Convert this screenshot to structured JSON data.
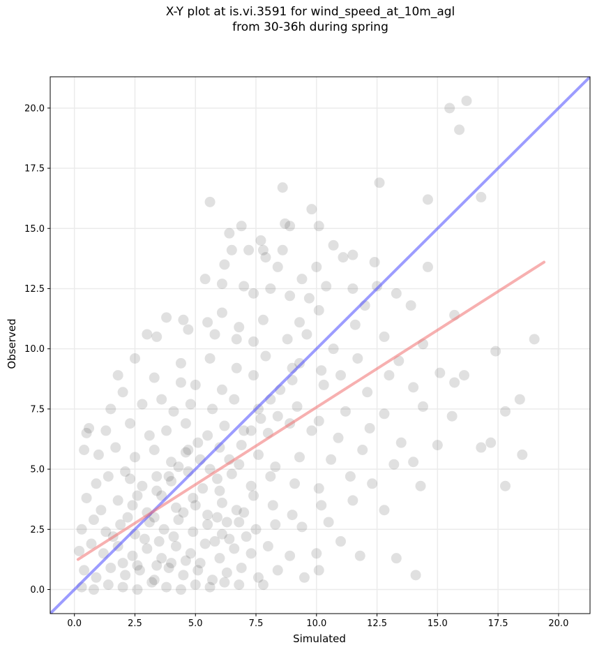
{
  "chart_data": {
    "type": "scatter",
    "title_lines": [
      "X-Y plot at is.vi.3591 for wind_speed_at_10m_agl",
      "from 30-36h during spring"
    ],
    "xlabel": "Simulated",
    "ylabel": "Observed",
    "xlim": [
      -1.0,
      21.3
    ],
    "ylim": [
      -1.0,
      21.3
    ],
    "xticks": [
      "0.0",
      "2.5",
      "5.0",
      "7.5",
      "10.0",
      "12.5",
      "15.0",
      "17.5",
      "20.0"
    ],
    "yticks": [
      "0.0",
      "2.5",
      "5.0",
      "7.5",
      "10.0",
      "12.5",
      "15.0",
      "17.5",
      "20.0"
    ],
    "grid": true,
    "series": [
      {
        "kind": "points",
        "color": "#000000",
        "points": [
          [
            16.2,
            20.3
          ],
          [
            15.5,
            20.0
          ],
          [
            15.9,
            19.1
          ],
          [
            8.6,
            16.7
          ],
          [
            12.6,
            16.9
          ],
          [
            5.6,
            16.1
          ],
          [
            14.6,
            16.2
          ],
          [
            16.8,
            16.3
          ],
          [
            9.8,
            15.8
          ],
          [
            10.1,
            15.1
          ],
          [
            8.7,
            15.2
          ],
          [
            8.9,
            15.1
          ],
          [
            6.9,
            15.1
          ],
          [
            6.4,
            14.8
          ],
          [
            7.7,
            14.5
          ],
          [
            7.8,
            14.1
          ],
          [
            7.2,
            14.1
          ],
          [
            6.5,
            14.1
          ],
          [
            8.6,
            14.1
          ],
          [
            10.7,
            14.3
          ],
          [
            11.5,
            13.9
          ],
          [
            14.6,
            13.4
          ],
          [
            11.1,
            13.8
          ],
          [
            12.4,
            13.6
          ],
          [
            8.4,
            13.4
          ],
          [
            10.0,
            13.4
          ],
          [
            6.2,
            13.5
          ],
          [
            7.9,
            13.8
          ],
          [
            5.4,
            12.9
          ],
          [
            6.1,
            12.7
          ],
          [
            7.0,
            12.6
          ],
          [
            8.1,
            12.5
          ],
          [
            9.4,
            12.9
          ],
          [
            10.4,
            12.6
          ],
          [
            12.5,
            12.6
          ],
          [
            13.3,
            12.3
          ],
          [
            11.5,
            12.5
          ],
          [
            7.4,
            12.3
          ],
          [
            8.9,
            12.2
          ],
          [
            9.7,
            12.1
          ],
          [
            3.8,
            11.3
          ],
          [
            4.5,
            11.2
          ],
          [
            5.5,
            11.1
          ],
          [
            6.1,
            11.5
          ],
          [
            6.8,
            10.9
          ],
          [
            7.8,
            11.2
          ],
          [
            9.3,
            11.1
          ],
          [
            10.1,
            11.6
          ],
          [
            11.6,
            11.0
          ],
          [
            12.0,
            11.8
          ],
          [
            13.9,
            11.8
          ],
          [
            15.7,
            11.4
          ],
          [
            3.4,
            10.5
          ],
          [
            3.0,
            10.6
          ],
          [
            4.7,
            10.8
          ],
          [
            5.8,
            10.6
          ],
          [
            6.7,
            10.4
          ],
          [
            7.4,
            10.3
          ],
          [
            8.8,
            10.4
          ],
          [
            9.6,
            10.6
          ],
          [
            10.7,
            10.0
          ],
          [
            12.8,
            10.5
          ],
          [
            14.4,
            10.2
          ],
          [
            19.0,
            10.4
          ],
          [
            17.4,
            9.9
          ],
          [
            2.5,
            9.6
          ],
          [
            4.4,
            9.4
          ],
          [
            5.6,
            9.6
          ],
          [
            6.7,
            9.2
          ],
          [
            7.9,
            9.7
          ],
          [
            9.3,
            9.4
          ],
          [
            10.2,
            9.1
          ],
          [
            11.7,
            9.6
          ],
          [
            13.4,
            9.5
          ],
          [
            15.1,
            9.0
          ],
          [
            16.1,
            8.9
          ],
          [
            1.8,
            8.9
          ],
          [
            3.3,
            8.8
          ],
          [
            4.4,
            8.6
          ],
          [
            5.0,
            8.5
          ],
          [
            6.1,
            8.3
          ],
          [
            7.4,
            8.9
          ],
          [
            9.0,
            8.7
          ],
          [
            10.3,
            8.5
          ],
          [
            11.0,
            8.9
          ],
          [
            12.1,
            8.2
          ],
          [
            13.0,
            8.9
          ],
          [
            14.0,
            8.4
          ],
          [
            15.7,
            8.6
          ],
          [
            18.4,
            7.9
          ],
          [
            1.5,
            7.5
          ],
          [
            2.0,
            8.2
          ],
          [
            2.8,
            7.7
          ],
          [
            3.6,
            7.9
          ],
          [
            4.1,
            7.4
          ],
          [
            4.8,
            7.7
          ],
          [
            5.7,
            7.5
          ],
          [
            6.6,
            7.9
          ],
          [
            7.6,
            7.5
          ],
          [
            8.4,
            7.2
          ],
          [
            9.2,
            7.6
          ],
          [
            10.1,
            7.0
          ],
          [
            11.2,
            7.4
          ],
          [
            12.8,
            7.3
          ],
          [
            14.4,
            7.6
          ],
          [
            15.6,
            7.2
          ],
          [
            17.8,
            7.4
          ],
          [
            0.5,
            6.5
          ],
          [
            0.6,
            6.7
          ],
          [
            1.3,
            6.6
          ],
          [
            2.3,
            6.9
          ],
          [
            3.1,
            6.4
          ],
          [
            3.8,
            6.6
          ],
          [
            4.6,
            6.9
          ],
          [
            5.5,
            6.4
          ],
          [
            6.2,
            6.8
          ],
          [
            7.0,
            6.6
          ],
          [
            8.0,
            6.5
          ],
          [
            8.9,
            6.9
          ],
          [
            9.8,
            6.6
          ],
          [
            10.9,
            6.3
          ],
          [
            12.2,
            6.7
          ],
          [
            13.5,
            6.1
          ],
          [
            15.0,
            6.0
          ],
          [
            16.8,
            5.9
          ],
          [
            17.2,
            6.1
          ],
          [
            0.4,
            5.8
          ],
          [
            1.0,
            5.6
          ],
          [
            1.7,
            5.9
          ],
          [
            2.5,
            5.5
          ],
          [
            3.3,
            5.8
          ],
          [
            4.0,
            5.3
          ],
          [
            4.6,
            5.7
          ],
          [
            5.2,
            5.4
          ],
          [
            6.0,
            5.9
          ],
          [
            6.8,
            5.2
          ],
          [
            7.6,
            5.6
          ],
          [
            8.3,
            5.1
          ],
          [
            9.3,
            5.5
          ],
          [
            10.6,
            5.4
          ],
          [
            11.9,
            5.8
          ],
          [
            13.2,
            5.2
          ],
          [
            14.0,
            5.3
          ],
          [
            18.5,
            5.6
          ],
          [
            0.9,
            4.4
          ],
          [
            1.4,
            4.7
          ],
          [
            2.1,
            4.9
          ],
          [
            2.8,
            4.3
          ],
          [
            3.4,
            4.7
          ],
          [
            4.0,
            4.5
          ],
          [
            4.7,
            4.9
          ],
          [
            5.3,
            4.2
          ],
          [
            5.9,
            4.6
          ],
          [
            6.5,
            4.8
          ],
          [
            7.3,
            4.3
          ],
          [
            8.1,
            4.7
          ],
          [
            9.1,
            4.4
          ],
          [
            10.1,
            4.2
          ],
          [
            11.4,
            4.7
          ],
          [
            12.3,
            4.4
          ],
          [
            14.3,
            4.3
          ],
          [
            17.8,
            4.3
          ],
          [
            0.5,
            3.8
          ],
          [
            1.1,
            3.3
          ],
          [
            1.8,
            3.7
          ],
          [
            2.4,
            3.5
          ],
          [
            3.0,
            3.2
          ],
          [
            3.6,
            3.9
          ],
          [
            4.2,
            3.4
          ],
          [
            4.9,
            3.8
          ],
          [
            5.5,
            3.1
          ],
          [
            6.1,
            3.6
          ],
          [
            6.7,
            3.3
          ],
          [
            7.4,
            3.9
          ],
          [
            8.2,
            3.5
          ],
          [
            9.0,
            3.1
          ],
          [
            10.2,
            3.5
          ],
          [
            11.5,
            3.7
          ],
          [
            12.8,
            3.3
          ],
          [
            0.3,
            2.5
          ],
          [
            0.8,
            2.9
          ],
          [
            1.3,
            2.4
          ],
          [
            1.9,
            2.7
          ],
          [
            2.5,
            2.3
          ],
          [
            3.1,
            2.8
          ],
          [
            3.7,
            2.5
          ],
          [
            4.3,
            2.9
          ],
          [
            4.9,
            2.4
          ],
          [
            5.5,
            2.7
          ],
          [
            6.1,
            2.3
          ],
          [
            6.8,
            2.8
          ],
          [
            7.5,
            2.5
          ],
          [
            8.3,
            2.7
          ],
          [
            9.4,
            2.6
          ],
          [
            10.5,
            2.8
          ],
          [
            11.0,
            2.0
          ],
          [
            0.2,
            1.6
          ],
          [
            0.7,
            1.9
          ],
          [
            1.2,
            1.5
          ],
          [
            1.8,
            1.8
          ],
          [
            2.4,
            1.4
          ],
          [
            3.0,
            1.7
          ],
          [
            3.6,
            1.3
          ],
          [
            4.2,
            1.8
          ],
          [
            4.8,
            1.5
          ],
          [
            5.4,
            1.9
          ],
          [
            6.0,
            1.3
          ],
          [
            6.6,
            1.7
          ],
          [
            7.3,
            1.5
          ],
          [
            8.0,
            1.8
          ],
          [
            8.9,
            1.4
          ],
          [
            10.0,
            1.5
          ],
          [
            11.8,
            1.4
          ],
          [
            13.3,
            1.3
          ],
          [
            0.4,
            0.8
          ],
          [
            0.9,
            0.5
          ],
          [
            1.5,
            0.9
          ],
          [
            2.1,
            0.6
          ],
          [
            2.7,
            0.8
          ],
          [
            3.3,
            0.4
          ],
          [
            3.9,
            0.9
          ],
          [
            4.5,
            0.6
          ],
          [
            5.1,
            0.8
          ],
          [
            5.7,
            0.4
          ],
          [
            6.3,
            0.7
          ],
          [
            6.9,
            0.9
          ],
          [
            7.6,
            0.5
          ],
          [
            8.4,
            0.8
          ],
          [
            9.5,
            0.5
          ],
          [
            10.1,
            0.8
          ],
          [
            14.1,
            0.6
          ],
          [
            0.3,
            0.1
          ],
          [
            0.8,
            0.0
          ],
          [
            1.4,
            0.2
          ],
          [
            2.0,
            0.1
          ],
          [
            2.6,
            0.0
          ],
          [
            3.2,
            0.3
          ],
          [
            3.8,
            0.1
          ],
          [
            4.4,
            0.0
          ],
          [
            5.0,
            0.2
          ],
          [
            5.6,
            0.1
          ],
          [
            6.2,
            0.3
          ],
          [
            6.8,
            0.2
          ],
          [
            7.8,
            0.2
          ],
          [
            2.3,
            4.6
          ],
          [
            2.6,
            3.9
          ],
          [
            3.4,
            4.1
          ],
          [
            3.9,
            4.7
          ],
          [
            4.3,
            5.1
          ],
          [
            4.7,
            5.8
          ],
          [
            5.1,
            6.1
          ],
          [
            5.6,
            5.0
          ],
          [
            6.0,
            4.1
          ],
          [
            6.4,
            5.4
          ],
          [
            6.9,
            6.0
          ],
          [
            7.3,
            6.6
          ],
          [
            7.7,
            7.1
          ],
          [
            8.1,
            7.9
          ],
          [
            8.5,
            8.3
          ],
          [
            9.0,
            9.2
          ],
          [
            3.3,
            3.0
          ],
          [
            4.5,
            3.2
          ],
          [
            5.0,
            3.5
          ],
          [
            5.9,
            3.0
          ],
          [
            6.3,
            2.8
          ],
          [
            7.0,
            3.2
          ],
          [
            1.6,
            2.2
          ],
          [
            2.2,
            3.0
          ],
          [
            2.9,
            2.1
          ],
          [
            3.5,
            2.0
          ],
          [
            4.1,
            2.2
          ],
          [
            4.6,
            1.2
          ],
          [
            5.2,
            1.1
          ],
          [
            5.8,
            2.0
          ],
          [
            6.4,
            2.1
          ],
          [
            7.1,
            2.2
          ],
          [
            2.0,
            1.1
          ],
          [
            2.6,
            1.0
          ],
          [
            3.4,
            1.0
          ],
          [
            4.0,
            1.1
          ]
        ]
      },
      {
        "kind": "line",
        "name": "",
        "color": "#4b4bff",
        "x": [
          -1.0,
          21.3
        ],
        "y": [
          -1.0,
          21.3
        ]
      },
      {
        "kind": "line",
        "name": "",
        "color": "#f07070",
        "x": [
          0.15,
          19.4
        ],
        "y": [
          1.25,
          13.6
        ]
      }
    ]
  }
}
